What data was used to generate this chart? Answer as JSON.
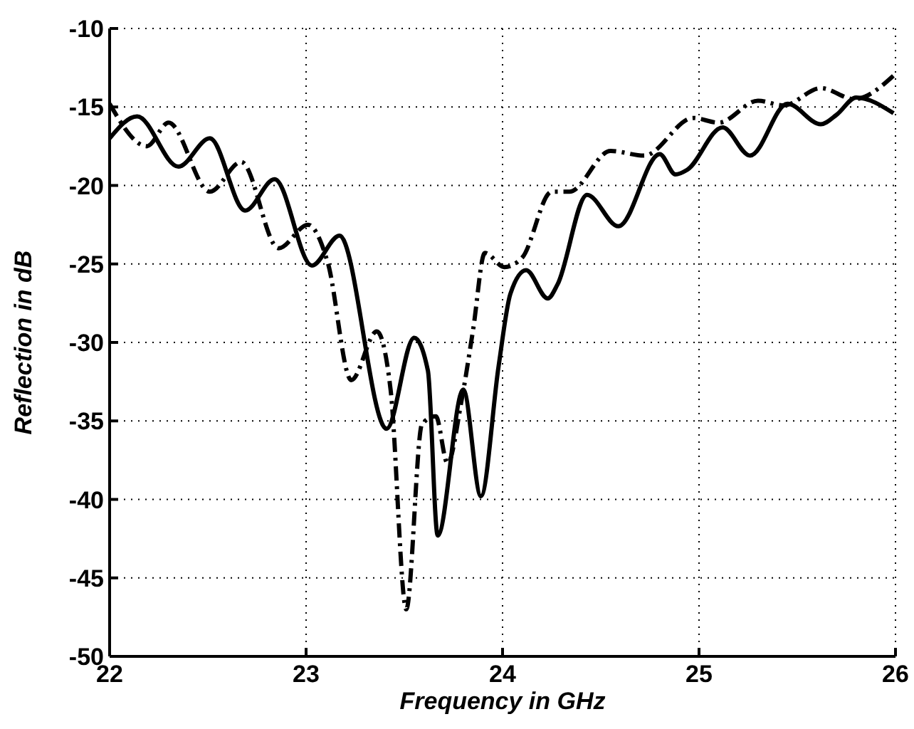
{
  "chart_data": {
    "type": "line",
    "xlabel": "Frequency in GHz",
    "ylabel": "Reflection in dB",
    "xlim": [
      22,
      26
    ],
    "xticks": [
      22,
      23,
      24,
      25,
      26
    ],
    "ylim": [
      -50,
      -10
    ],
    "yticks": [
      -50,
      -45,
      -40,
      -35,
      -30,
      -25,
      -20,
      -15,
      -10
    ],
    "grid": true,
    "legend": false,
    "marker": "none",
    "series": [
      {
        "color": "#000000",
        "line_style": "solid",
        "x": [
          22,
          22.14,
          22.35,
          22.51,
          22.69,
          22.84,
          23.03,
          23.17,
          23.41,
          23.55,
          23.62,
          23.67,
          23.8,
          23.89,
          23.98,
          24.04,
          24.12,
          24.23,
          24.28,
          24.43,
          24.59,
          24.8,
          24.88,
          24.94,
          25.12,
          25.26,
          25.45,
          25.62,
          25.7,
          25.8,
          25.99
        ],
        "values": [
          -17.0,
          -15.6,
          -18.8,
          -17.0,
          -21.6,
          -19.6,
          -25.1,
          -23.2,
          -35.5,
          -29.7,
          -31.8,
          -42.3,
          -33.0,
          -39.8,
          -31.5,
          -26.9,
          -25.4,
          -27.2,
          -26.3,
          -20.6,
          -22.6,
          -18.0,
          -19.3,
          -19.0,
          -16.3,
          -18.1,
          -14.8,
          -16.1,
          -15.5,
          -14.4,
          -15.4
        ]
      },
      {
        "color": "#000000",
        "line_style": "dashed",
        "x": [
          22,
          22.19,
          22.3,
          22.51,
          22.67,
          22.86,
          23.01,
          23.11,
          23.23,
          23.36,
          23.43,
          23.51,
          23.59,
          23.66,
          23.72,
          23.79,
          23.85,
          23.91,
          24.01,
          24.1,
          24.25,
          24.34,
          24.55,
          24.72,
          24.97,
          25.1,
          25.3,
          25.43,
          25.62,
          25.79,
          25.99
        ],
        "values": [
          -14.8,
          -17.5,
          -16.0,
          -20.4,
          -18.5,
          -24.0,
          -22.5,
          -24.9,
          -32.4,
          -29.3,
          -33.0,
          -47.0,
          -35.2,
          -34.7,
          -37.7,
          -33.8,
          -29.2,
          -24.3,
          -25.2,
          -24.6,
          -20.4,
          -20.4,
          -17.8,
          -18.1,
          -15.7,
          -16.0,
          -14.6,
          -14.9,
          -13.8,
          -14.5,
          -13.0
        ]
      }
    ]
  }
}
